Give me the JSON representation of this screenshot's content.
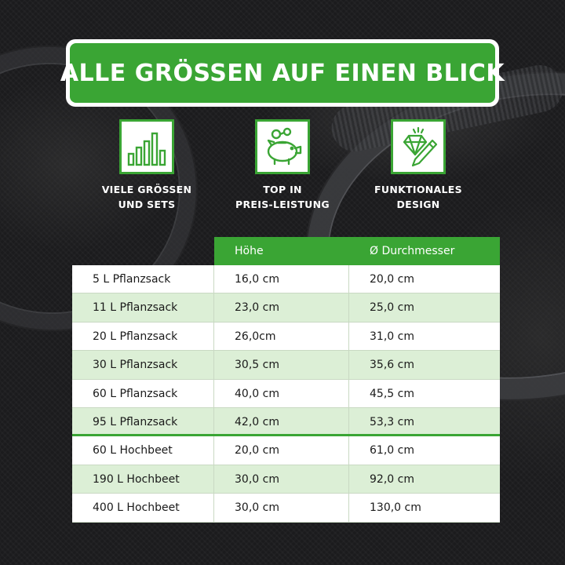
{
  "banner": {
    "title": "ALLE GRÖSSEN AUF EINEN BLICK"
  },
  "features": [
    {
      "icon": "bar-chart-icon",
      "label": "VIELE GRÖSSEN\nUND SETS"
    },
    {
      "icon": "piggy-bank-icon",
      "label": "TOP IN\nPREIS-LEISTUNG"
    },
    {
      "icon": "diamond-pencil-icon",
      "label": "FUNKTIONALES\nDESIGN"
    }
  ],
  "table": {
    "headers": [
      "",
      "Höhe",
      "Ø Durchmesser"
    ],
    "rows": [
      [
        "5 L Pflanzsack",
        "16,0 cm",
        "20,0 cm"
      ],
      [
        "11 L Pflanzsack",
        "23,0 cm",
        "25,0 cm"
      ],
      [
        "20 L Pflanzsack",
        "26,0cm",
        "31,0 cm"
      ],
      [
        "30 L Pflanzsack",
        "30,5 cm",
        "35,6 cm"
      ],
      [
        "60 L Pflanzsack",
        "40,0 cm",
        "45,5 cm"
      ],
      [
        "95 L Pflanzsack",
        "42,0 cm",
        "53,3 cm"
      ],
      [
        "60 L Hochbeet",
        "20,0 cm",
        "61,0 cm"
      ],
      [
        "190 L Hochbeet",
        "30,0 cm",
        "92,0 cm"
      ],
      [
        "400 L Hochbeet",
        "30,0 cm",
        "130,0 cm"
      ]
    ]
  },
  "colors": {
    "accent": "#3aa534",
    "row_alt": "#dcefd6",
    "background": "#1b1b1d"
  }
}
